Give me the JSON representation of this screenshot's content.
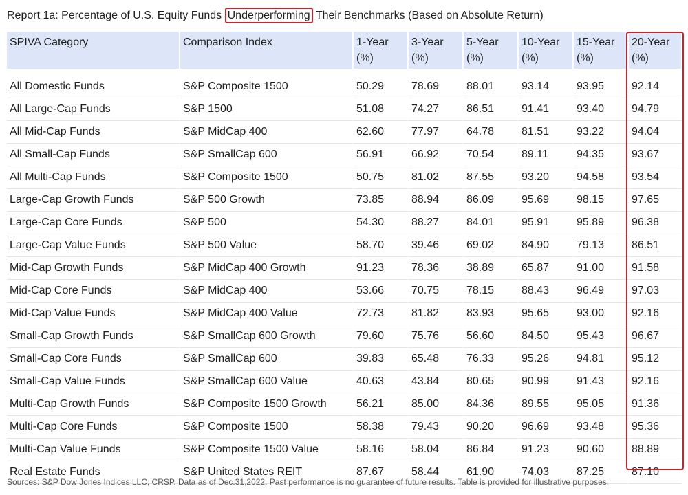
{
  "title": {
    "prefix": "Report 1a: Percentage of U.S. Equity Funds ",
    "highlight": "Underperforming",
    "suffix": " Their Benchmarks (Based on Absolute Return)"
  },
  "colors": {
    "header_bg": "#dce6f8",
    "highlight": "#c0272d"
  },
  "chart_data": {
    "type": "table",
    "title": "Report 1a: Percentage of U.S. Equity Funds Underperforming Their Benchmarks (Based on Absolute Return)",
    "columns": [
      {
        "line1": "SPIVA Category",
        "line2": ""
      },
      {
        "line1": "Comparison Index",
        "line2": ""
      },
      {
        "line1": "1-Year",
        "line2": "(%)"
      },
      {
        "line1": "3-Year",
        "line2": "(%)"
      },
      {
        "line1": "5-Year",
        "line2": "(%)"
      },
      {
        "line1": "10-Year",
        "line2": "(%)"
      },
      {
        "line1": "15-Year",
        "line2": "(%)"
      },
      {
        "line1": "20-Year",
        "line2": "(%)"
      }
    ],
    "rows": [
      [
        "All Domestic Funds",
        "S&P Composite 1500",
        "50.29",
        "78.69",
        "88.01",
        "93.14",
        "93.95",
        "92.14"
      ],
      [
        "All Large-Cap Funds",
        "S&P 1500",
        "51.08",
        "74.27",
        "86.51",
        "91.41",
        "93.40",
        "94.79"
      ],
      [
        "All Mid-Cap Funds",
        "S&P MidCap 400",
        "62.60",
        "77.97",
        "64.78",
        "81.51",
        "93.22",
        "94.04"
      ],
      [
        "All Small-Cap Funds",
        "S&P SmallCap 600",
        "56.91",
        "66.92",
        "70.54",
        "89.11",
        "94.35",
        "93.67"
      ],
      [
        "All Multi-Cap Funds",
        "S&P Composite 1500",
        "50.75",
        "81.02",
        "87.55",
        "93.20",
        "94.58",
        "93.54"
      ],
      [
        "Large-Cap Growth Funds",
        "S&P 500 Growth",
        "73.85",
        "88.94",
        "86.09",
        "95.69",
        "98.15",
        "97.65"
      ],
      [
        "Large-Cap Core Funds",
        "S&P 500",
        "54.30",
        "88.27",
        "84.01",
        "95.91",
        "95.89",
        "96.38"
      ],
      [
        "Large-Cap Value Funds",
        "S&P 500 Value",
        "58.70",
        "39.46",
        "69.02",
        "84.90",
        "79.13",
        "86.51"
      ],
      [
        "Mid-Cap Growth Funds",
        "S&P MidCap 400 Growth",
        "91.23",
        "78.36",
        "38.89",
        "65.87",
        "91.00",
        "91.58"
      ],
      [
        "Mid-Cap Core Funds",
        "S&P MidCap 400",
        "53.66",
        "70.75",
        "78.15",
        "88.43",
        "96.49",
        "97.03"
      ],
      [
        "Mid-Cap Value Funds",
        "S&P MidCap 400 Value",
        "72.73",
        "81.82",
        "83.93",
        "95.65",
        "93.00",
        "92.16"
      ],
      [
        "Small-Cap Growth Funds",
        "S&P SmallCap 600 Growth",
        "79.60",
        "75.76",
        "56.60",
        "84.50",
        "95.43",
        "96.67"
      ],
      [
        "Small-Cap Core Funds",
        "S&P SmallCap 600",
        "39.83",
        "65.48",
        "76.33",
        "95.26",
        "94.81",
        "95.12"
      ],
      [
        "Small-Cap Value Funds",
        "S&P SmallCap 600 Value",
        "40.63",
        "43.84",
        "80.65",
        "90.99",
        "91.43",
        "92.16"
      ],
      [
        "Multi-Cap Growth Funds",
        "S&P Composite 1500 Growth",
        "56.21",
        "85.00",
        "84.36",
        "89.55",
        "95.05",
        "91.36"
      ],
      [
        "Multi-Cap Core Funds",
        "S&P Composite 1500",
        "58.38",
        "79.43",
        "90.20",
        "96.69",
        "93.48",
        "95.36"
      ],
      [
        "Multi-Cap Value Funds",
        "S&P Composite 1500 Value",
        "58.16",
        "58.04",
        "86.84",
        "91.23",
        "90.60",
        "88.89"
      ],
      [
        "Real Estate Funds",
        "S&P United States REIT",
        "87.67",
        "58.44",
        "61.90",
        "74.03",
        "87.25",
        "87.10"
      ]
    ]
  },
  "footnote": "Sources: S&P Dow Jones Indices LLC, CRSP. Data as of Dec.31,2022. Past performance is no guarantee of future results. Table is provided for illustrative purposes."
}
